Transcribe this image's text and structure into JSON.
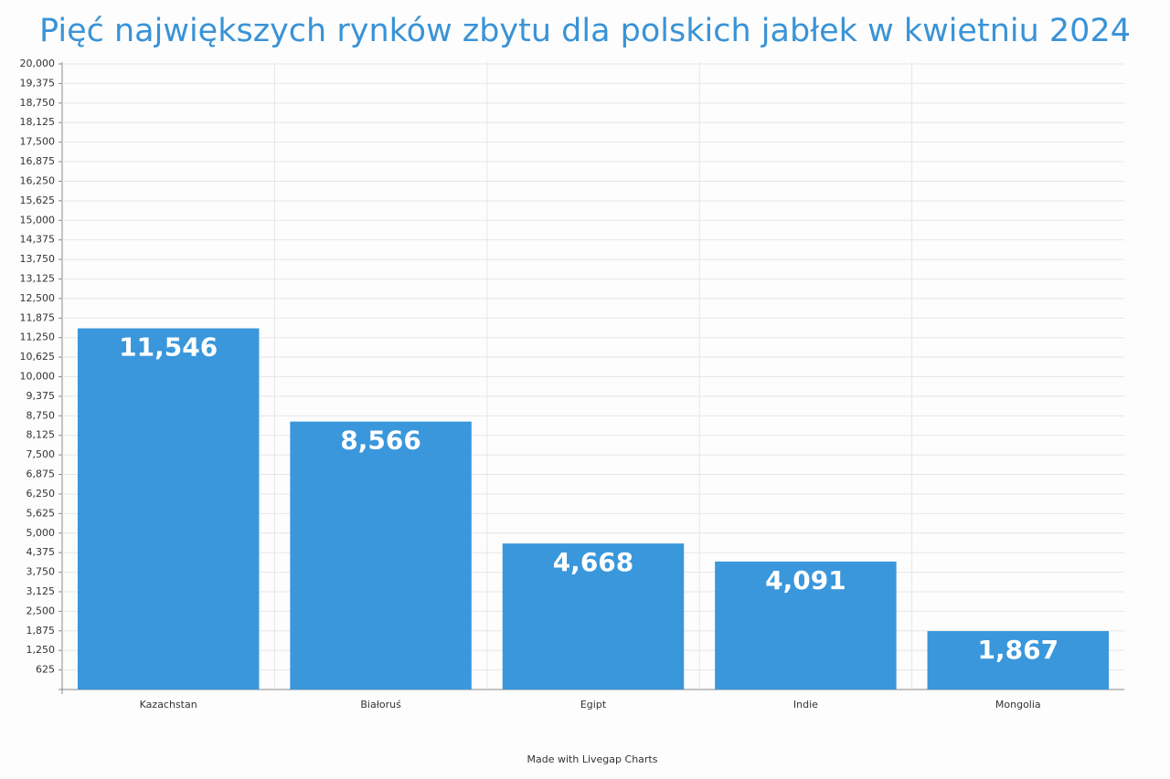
{
  "chart_data": {
    "type": "bar",
    "title": "Pięć największych rynków zbytu dla polskich jabłek w kwietniu 2024",
    "footer": "Made with Livegap Charts",
    "categories": [
      "Kazachstan",
      "Białoruś",
      "Egipt",
      "Indie",
      "Mongolia"
    ],
    "values": [
      11546,
      8566,
      4668,
      4091,
      1867
    ],
    "value_labels": [
      "11,546",
      "8,566",
      "4,668",
      "4,091",
      "1,867"
    ],
    "color": "#3a97db",
    "ylim": [
      0,
      20000
    ],
    "yticks": [
      625,
      {
        "value": 1250,
        "label": "1,250"
      },
      {
        "value": 1875,
        "label": "1,875"
      },
      {
        "value": 2500,
        "label": "2,500"
      },
      {
        "value": 3125,
        "label": "3,125"
      },
      {
        "value": 3750,
        "label": "3,750"
      },
      {
        "value": 4375,
        "label": "4,375"
      },
      {
        "value": 5000,
        "label": "5,000"
      },
      {
        "value": 5625,
        "label": "5,625"
      },
      {
        "value": 6250,
        "label": "6,250"
      },
      {
        "value": 6875,
        "label": "6,875"
      },
      {
        "value": 7500,
        "label": "7,500"
      },
      {
        "value": 8125,
        "label": "8,125"
      },
      {
        "value": 8750,
        "label": "8,750"
      },
      {
        "value": 9375,
        "label": "9,375"
      },
      {
        "value": 10000,
        "label": "10,000"
      },
      {
        "value": 10625,
        "label": "10,625"
      },
      {
        "value": 11250,
        "label": "11,250"
      },
      {
        "value": 11875,
        "label": "11,875"
      },
      {
        "value": 12500,
        "label": "12,500"
      },
      {
        "value": 13125,
        "label": "13,125"
      },
      {
        "value": 13750,
        "label": "13,750"
      },
      {
        "value": 14375,
        "label": "14,375"
      },
      {
        "value": 15000,
        "label": "15,000"
      },
      {
        "value": 15625,
        "label": "15,625"
      },
      {
        "value": 16250,
        "label": "16,250"
      },
      {
        "value": 16875,
        "label": "16,875"
      },
      {
        "value": 17500,
        "label": "17,500"
      },
      {
        "value": 18125,
        "label": "18,125"
      },
      {
        "value": 18750,
        "label": "18,750"
      },
      {
        "value": 19375,
        "label": "19,375"
      },
      {
        "value": 20000,
        "label": "20,000"
      }
    ],
    "grid": true
  }
}
